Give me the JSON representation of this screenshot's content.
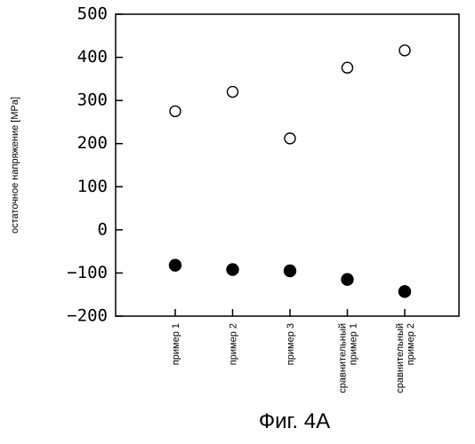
{
  "chart_data": {
    "type": "scatter",
    "categories": [
      "пример 1",
      "пример 2",
      "пример 3",
      "сравнительный пример 1",
      "сравнительный пример 2"
    ],
    "category_label_lines": [
      [
        "пример 1"
      ],
      [
        "пример 2"
      ],
      [
        "пример 3"
      ],
      [
        "сравнительный",
        "пример 1"
      ],
      [
        "сравнительный",
        "пример 2"
      ]
    ],
    "series": [
      {
        "marker": "open-circle",
        "values": [
          275,
          320,
          212,
          376,
          416
        ]
      },
      {
        "marker": "filled-circle",
        "values": [
          -82,
          -92,
          -95,
          -115,
          -143
        ]
      }
    ],
    "ylabel": "остаточное напряжение [MPa]",
    "ylim": [
      -200,
      500
    ],
    "yticks": [
      500,
      400,
      300,
      200,
      100,
      0,
      -100,
      -200
    ],
    "ytick_labels": [
      "500",
      "400",
      "300",
      "200",
      "100",
      "0",
      "−100",
      "−200"
    ],
    "grid": false,
    "legend": "none",
    "colors": {
      "axis": "#000000",
      "marker": "#000000",
      "background": "#ffffff"
    }
  },
  "caption": "Фиг. 4A"
}
